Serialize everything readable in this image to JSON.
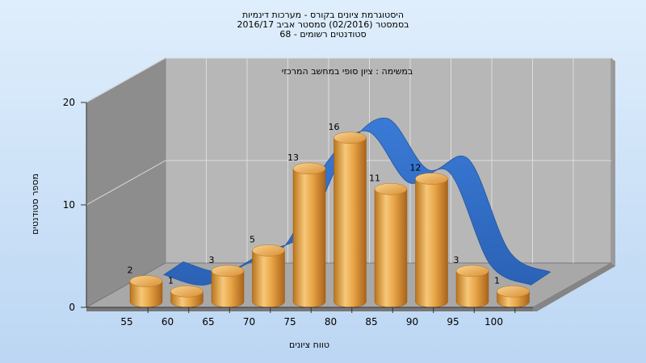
{
  "chart_data": {
    "type": "bar",
    "title_lines": [
      "היסטוגרמת ציונים בקורס - מערכות דינמיות",
      "בסמסטר  (02/2016)  סמסטר אביב 2016/17",
      "סטודנטים רשומים - 68"
    ],
    "subtitle": "במשימה : ציון סופי במחשב המרכזי",
    "categories": [
      "55",
      "60",
      "65",
      "70",
      "75",
      "80",
      "85",
      "90",
      "95",
      "100"
    ],
    "values": [
      2,
      1,
      3,
      5,
      13,
      16,
      11,
      12,
      3,
      1
    ],
    "xlabel": "טווח ציונים",
    "ylabel": "מספר סטודנטים",
    "ylim": [
      0,
      20
    ],
    "yticks": [
      0,
      10,
      20
    ],
    "grid": true,
    "colors": {
      "bar": "#e8a547",
      "curve": "#2e6cc4",
      "back_wall": "#b5b5b5",
      "side_wall": "#8c8c8c",
      "floor": "#a6a6a6"
    }
  }
}
